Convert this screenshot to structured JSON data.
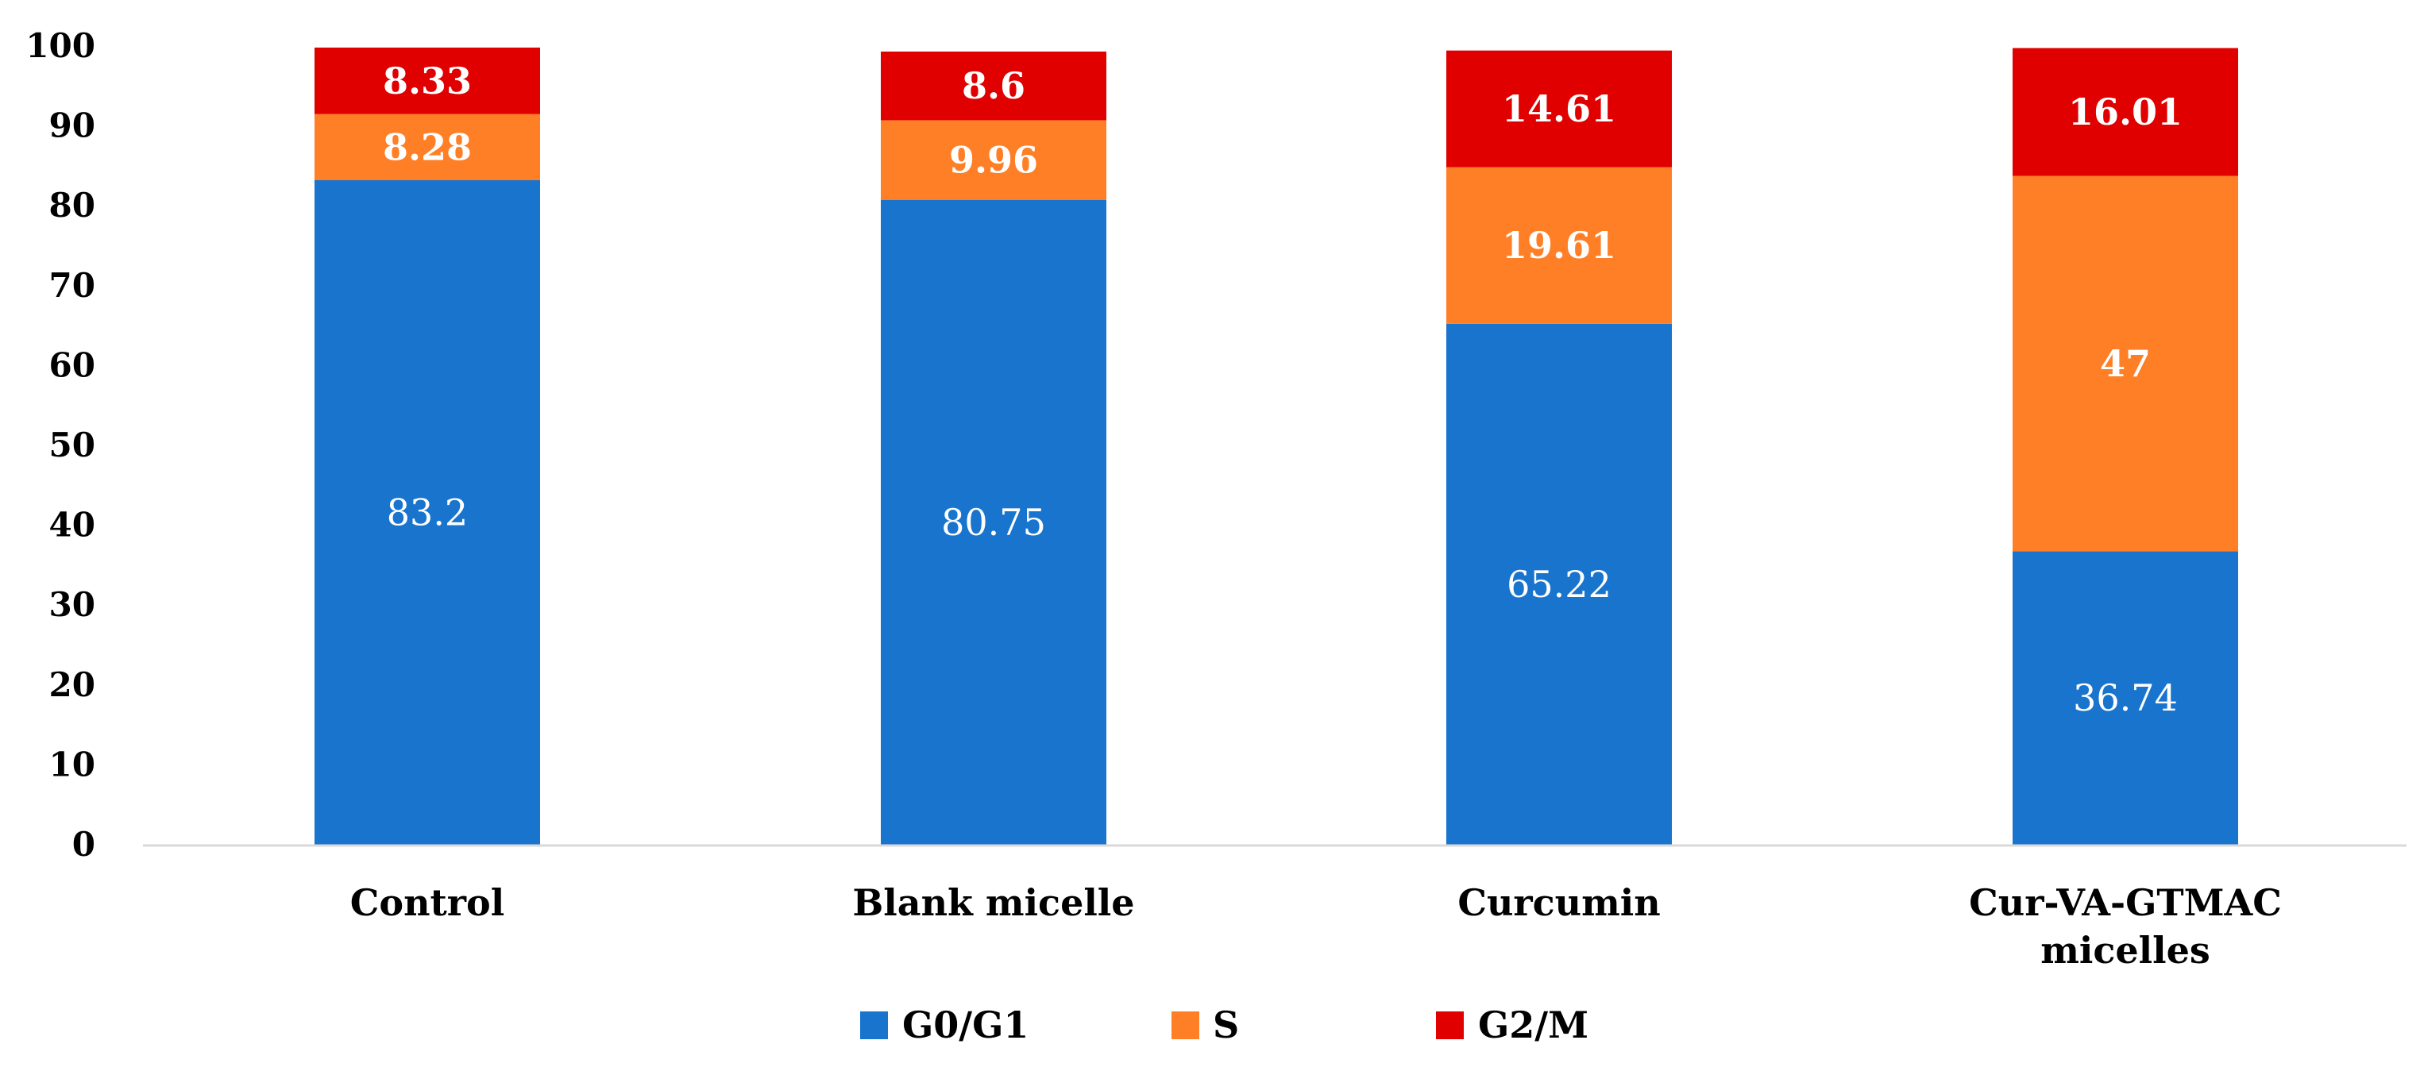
{
  "chart_data": {
    "type": "stacked-bar",
    "title": "",
    "xlabel": "",
    "ylabel": "",
    "ylim": [
      0,
      100
    ],
    "yticks": [
      0,
      10,
      20,
      30,
      40,
      50,
      60,
      70,
      80,
      90,
      100
    ],
    "categories": [
      [
        "Control"
      ],
      [
        "Blank micelle"
      ],
      [
        "Curcumin"
      ],
      [
        "Cur-VA-GTMAC",
        "micelles"
      ]
    ],
    "series": [
      {
        "name": "G0/G1",
        "color": "#1874CD",
        "values": [
          83.2,
          80.75,
          65.22,
          36.74
        ],
        "labels": [
          "83.2",
          "80.75",
          "65.22",
          "36.74"
        ]
      },
      {
        "name": "S",
        "color": "#FF7F27",
        "values": [
          8.28,
          9.96,
          19.61,
          47
        ],
        "labels": [
          "8.28",
          "9.96",
          "19.61",
          "47"
        ]
      },
      {
        "name": "G2/M",
        "color": "#E00000",
        "values": [
          8.33,
          8.6,
          14.61,
          16.01
        ],
        "labels": [
          "8.33",
          "8.6",
          "14.61",
          "16.01"
        ]
      }
    ],
    "legend_position": "bottom-center",
    "grid": false
  }
}
